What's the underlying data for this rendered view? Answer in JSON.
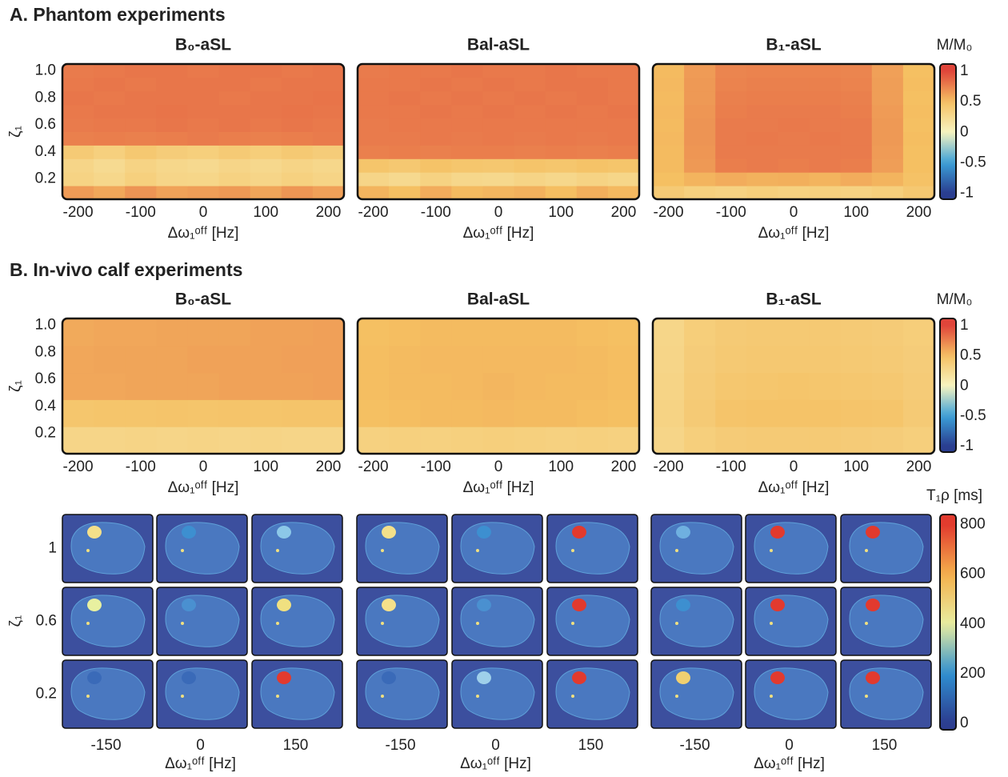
{
  "panel_a_title": "A. Phantom experiments",
  "panel_b_title": "B. In-vivo calf experiments",
  "chart_data": [
    {
      "type": "heatmap",
      "title": "B₀-aSL",
      "xlabel": "Δω₁ᵒᶠᶠ [Hz]",
      "ylabel": "ζ₁",
      "x": [
        -200,
        -150,
        -100,
        -50,
        0,
        50,
        100,
        150,
        200
      ],
      "y": [
        0.1,
        0.2,
        0.3,
        0.4,
        0.5,
        0.6,
        0.7,
        0.8,
        0.9,
        1.0
      ],
      "values": [
        [
          0.65,
          0.6,
          0.68,
          0.62,
          0.64,
          0.66,
          0.61,
          0.67,
          0.63
        ],
        [
          0.32,
          0.28,
          0.35,
          0.3,
          0.29,
          0.33,
          0.3,
          0.34,
          0.31
        ],
        [
          0.3,
          0.25,
          0.32,
          0.28,
          0.26,
          0.3,
          0.27,
          0.31,
          0.28
        ],
        [
          0.4,
          0.35,
          0.42,
          0.38,
          0.36,
          0.4,
          0.37,
          0.41,
          0.38
        ],
        [
          0.76,
          0.77,
          0.76,
          0.77,
          0.78,
          0.77,
          0.76,
          0.77,
          0.78
        ],
        [
          0.78,
          0.79,
          0.79,
          0.8,
          0.79,
          0.8,
          0.79,
          0.8,
          0.79
        ],
        [
          0.79,
          0.8,
          0.8,
          0.81,
          0.8,
          0.8,
          0.8,
          0.81,
          0.8
        ],
        [
          0.8,
          0.79,
          0.8,
          0.8,
          0.8,
          0.79,
          0.8,
          0.8,
          0.81
        ],
        [
          0.79,
          0.8,
          0.79,
          0.8,
          0.8,
          0.8,
          0.79,
          0.8,
          0.8
        ],
        [
          0.78,
          0.79,
          0.8,
          0.8,
          0.79,
          0.8,
          0.8,
          0.79,
          0.8
        ]
      ],
      "xlim": [
        -225,
        225
      ],
      "ylim": [
        0.05,
        1.05
      ],
      "xticks": [
        -200,
        -100,
        0,
        100,
        200
      ],
      "yticks": [
        0.2,
        0.4,
        0.6,
        0.8,
        {
          "value": 1,
          "label": "1.0"
        }
      ]
    },
    {
      "type": "heatmap",
      "title": "Bal-aSL",
      "xlabel": "Δω₁ᵒᶠᶠ [Hz]",
      "x": [
        -200,
        -150,
        -100,
        -50,
        0,
        50,
        100,
        150,
        200
      ],
      "y": [
        0.1,
        0.2,
        0.3,
        0.4,
        0.5,
        0.6,
        0.7,
        0.8,
        0.9,
        1.0
      ],
      "values": [
        [
          0.55,
          0.5,
          0.58,
          0.52,
          0.54,
          0.56,
          0.51,
          0.57,
          0.53
        ],
        [
          0.3,
          0.26,
          0.33,
          0.28,
          0.27,
          0.31,
          0.28,
          0.32,
          0.29
        ],
        [
          0.45,
          0.42,
          0.47,
          0.44,
          0.43,
          0.46,
          0.44,
          0.47,
          0.45
        ],
        [
          0.76,
          0.77,
          0.76,
          0.77,
          0.77,
          0.76,
          0.77,
          0.76,
          0.77
        ],
        [
          0.78,
          0.78,
          0.79,
          0.78,
          0.79,
          0.78,
          0.79,
          0.78,
          0.79
        ],
        [
          0.78,
          0.79,
          0.79,
          0.79,
          0.79,
          0.79,
          0.79,
          0.79,
          0.79
        ],
        [
          0.79,
          0.79,
          0.8,
          0.79,
          0.8,
          0.79,
          0.8,
          0.79,
          0.8
        ],
        [
          0.79,
          0.8,
          0.79,
          0.8,
          0.79,
          0.8,
          0.79,
          0.8,
          0.79
        ],
        [
          0.79,
          0.79,
          0.8,
          0.79,
          0.8,
          0.79,
          0.8,
          0.8,
          0.79
        ],
        [
          0.78,
          0.79,
          0.79,
          0.8,
          0.79,
          0.79,
          0.8,
          0.79,
          0.79
        ]
      ],
      "xlim": [
        -225,
        225
      ],
      "ylim": [
        0.05,
        1.05
      ],
      "xticks": [
        -200,
        -100,
        0,
        100,
        200
      ]
    },
    {
      "type": "heatmap",
      "title": "B₁-aSL",
      "xlabel": "Δω₁ᵒᶠᶠ [Hz]",
      "x": [
        -200,
        -150,
        -100,
        -50,
        0,
        50,
        100,
        150,
        200
      ],
      "y": [
        0.1,
        0.2,
        0.3,
        0.4,
        0.5,
        0.6,
        0.7,
        0.8,
        0.9,
        1.0
      ],
      "values": [
        [
          0.4,
          0.35,
          0.33,
          0.36,
          0.34,
          0.35,
          0.33,
          0.36,
          0.42
        ],
        [
          0.5,
          0.55,
          0.58,
          0.56,
          0.57,
          0.55,
          0.58,
          0.55,
          0.48
        ],
        [
          0.52,
          0.66,
          0.77,
          0.78,
          0.77,
          0.78,
          0.77,
          0.64,
          0.5
        ],
        [
          0.52,
          0.67,
          0.78,
          0.78,
          0.78,
          0.78,
          0.78,
          0.65,
          0.5
        ],
        [
          0.53,
          0.68,
          0.78,
          0.79,
          0.78,
          0.79,
          0.78,
          0.66,
          0.51
        ],
        [
          0.52,
          0.68,
          0.78,
          0.78,
          0.79,
          0.78,
          0.78,
          0.66,
          0.5
        ],
        [
          0.53,
          0.67,
          0.77,
          0.78,
          0.78,
          0.78,
          0.77,
          0.65,
          0.51
        ],
        [
          0.52,
          0.66,
          0.76,
          0.77,
          0.77,
          0.77,
          0.76,
          0.64,
          0.5
        ],
        [
          0.53,
          0.66,
          0.75,
          0.76,
          0.76,
          0.76,
          0.75,
          0.64,
          0.51
        ],
        [
          0.52,
          0.65,
          0.74,
          0.75,
          0.75,
          0.75,
          0.74,
          0.63,
          0.5
        ]
      ],
      "xlim": [
        -225,
        225
      ],
      "ylim": [
        0.05,
        1.05
      ],
      "xticks": [
        -200,
        -100,
        0,
        100,
        200
      ]
    },
    {
      "type": "heatmap",
      "title": "B₀-aSL",
      "xlabel": "Δω₁ᵒᶠᶠ [Hz]",
      "ylabel": "ζ₁",
      "x": [
        -200,
        -150,
        -100,
        -50,
        0,
        50,
        100,
        150,
        200
      ],
      "y": [
        0.15,
        0.35,
        0.55,
        0.75,
        0.95
      ],
      "values": [
        [
          0.3,
          0.3,
          0.31,
          0.3,
          0.31,
          0.3,
          0.31,
          0.3,
          0.3
        ],
        [
          0.44,
          0.45,
          0.45,
          0.46,
          0.45,
          0.46,
          0.45,
          0.46,
          0.46
        ],
        [
          0.6,
          0.6,
          0.61,
          0.61,
          0.61,
          0.62,
          0.62,
          0.62,
          0.63
        ],
        [
          0.6,
          0.61,
          0.61,
          0.61,
          0.62,
          0.62,
          0.62,
          0.63,
          0.63
        ],
        [
          0.59,
          0.6,
          0.6,
          0.61,
          0.61,
          0.61,
          0.62,
          0.62,
          0.63
        ]
      ],
      "xlim": [
        -225,
        225
      ],
      "ylim": [
        0.05,
        1.05
      ],
      "xticks": [
        -200,
        -100,
        0,
        100,
        200
      ],
      "yticks": [
        0.2,
        0.4,
        0.6,
        0.8,
        {
          "value": 1,
          "label": "1.0"
        }
      ]
    },
    {
      "type": "heatmap",
      "title": "Bal-aSL",
      "xlabel": "Δω₁ᵒᶠᶠ [Hz]",
      "x": [
        -200,
        -150,
        -100,
        -50,
        0,
        50,
        100,
        150,
        200
      ],
      "y": [
        0.15,
        0.35,
        0.55,
        0.75,
        0.95
      ],
      "values": [
        [
          0.34,
          0.35,
          0.34,
          0.35,
          0.36,
          0.35,
          0.34,
          0.35,
          0.34
        ],
        [
          0.5,
          0.51,
          0.52,
          0.52,
          0.53,
          0.52,
          0.52,
          0.51,
          0.5
        ],
        [
          0.51,
          0.52,
          0.52,
          0.53,
          0.54,
          0.53,
          0.52,
          0.52,
          0.51
        ],
        [
          0.51,
          0.52,
          0.53,
          0.53,
          0.53,
          0.53,
          0.53,
          0.52,
          0.51
        ],
        [
          0.5,
          0.51,
          0.52,
          0.52,
          0.52,
          0.52,
          0.52,
          0.51,
          0.5
        ]
      ],
      "xlim": [
        -225,
        225
      ],
      "ylim": [
        0.05,
        1.05
      ],
      "xticks": [
        -200,
        -100,
        0,
        100,
        200
      ]
    },
    {
      "type": "heatmap",
      "title": "B₁-aSL",
      "xlabel": "Δω₁ᵒᶠᶠ [Hz]",
      "x": [
        -200,
        -150,
        -100,
        -50,
        0,
        50,
        100,
        150,
        200
      ],
      "y": [
        0.15,
        0.35,
        0.55,
        0.75,
        0.95
      ],
      "values": [
        [
          0.3,
          0.36,
          0.39,
          0.4,
          0.4,
          0.4,
          0.39,
          0.38,
          0.36
        ],
        [
          0.32,
          0.4,
          0.46,
          0.47,
          0.47,
          0.47,
          0.46,
          0.45,
          0.4
        ],
        [
          0.31,
          0.39,
          0.43,
          0.44,
          0.45,
          0.44,
          0.43,
          0.42,
          0.39
        ],
        [
          0.3,
          0.38,
          0.41,
          0.42,
          0.42,
          0.42,
          0.41,
          0.4,
          0.38
        ],
        [
          0.29,
          0.37,
          0.4,
          0.41,
          0.41,
          0.41,
          0.4,
          0.39,
          0.37
        ]
      ],
      "xlim": [
        -225,
        225
      ],
      "ylim": [
        0.05,
        1.05
      ],
      "xticks": [
        -200,
        -100,
        0,
        100,
        200
      ]
    }
  ],
  "colorbars": [
    {
      "label": "M/M₀",
      "lim": [
        -1.1,
        1.12
      ],
      "ticks": [
        -1,
        -0.5,
        0,
        0.5,
        1
      ],
      "colors": [
        "#2a3d8f",
        "#3ca0d8",
        "#f7f4c0",
        "#f5c062",
        "#e0453a"
      ]
    },
    {
      "label": "M/M₀",
      "lim": [
        -1.1,
        1.12
      ],
      "ticks": [
        -1,
        -0.5,
        0,
        0.5,
        1
      ],
      "colors": [
        "#2a3d8f",
        "#3ca0d8",
        "#f7f4c0",
        "#f5c062",
        "#e0453a"
      ]
    },
    {
      "label": "T₁ρ [ms]",
      "lim": [
        -25,
        840
      ],
      "ticks": [
        0,
        200,
        400,
        600,
        800
      ],
      "colors": [
        "#2c3b8e",
        "#2f8fd0",
        "#e8eda0",
        "#f4b04c",
        "#e23a2e"
      ]
    }
  ],
  "image_grids": [
    {
      "ylabel": "ζ₁",
      "row_labels": [
        1,
        0.6,
        0.2
      ],
      "col_labels": [
        -150,
        0,
        150
      ],
      "xlabel": "Δω₁ᵒᶠᶠ [Hz]"
    },
    {
      "row_labels": [],
      "col_labels": [
        -150,
        0,
        150
      ],
      "xlabel": "Δω₁ᵒᶠᶠ [Hz]"
    },
    {
      "row_labels": [],
      "col_labels": [
        -150,
        0,
        150
      ],
      "xlabel": "Δω₁ᵒᶠᶠ [Hz]"
    }
  ]
}
